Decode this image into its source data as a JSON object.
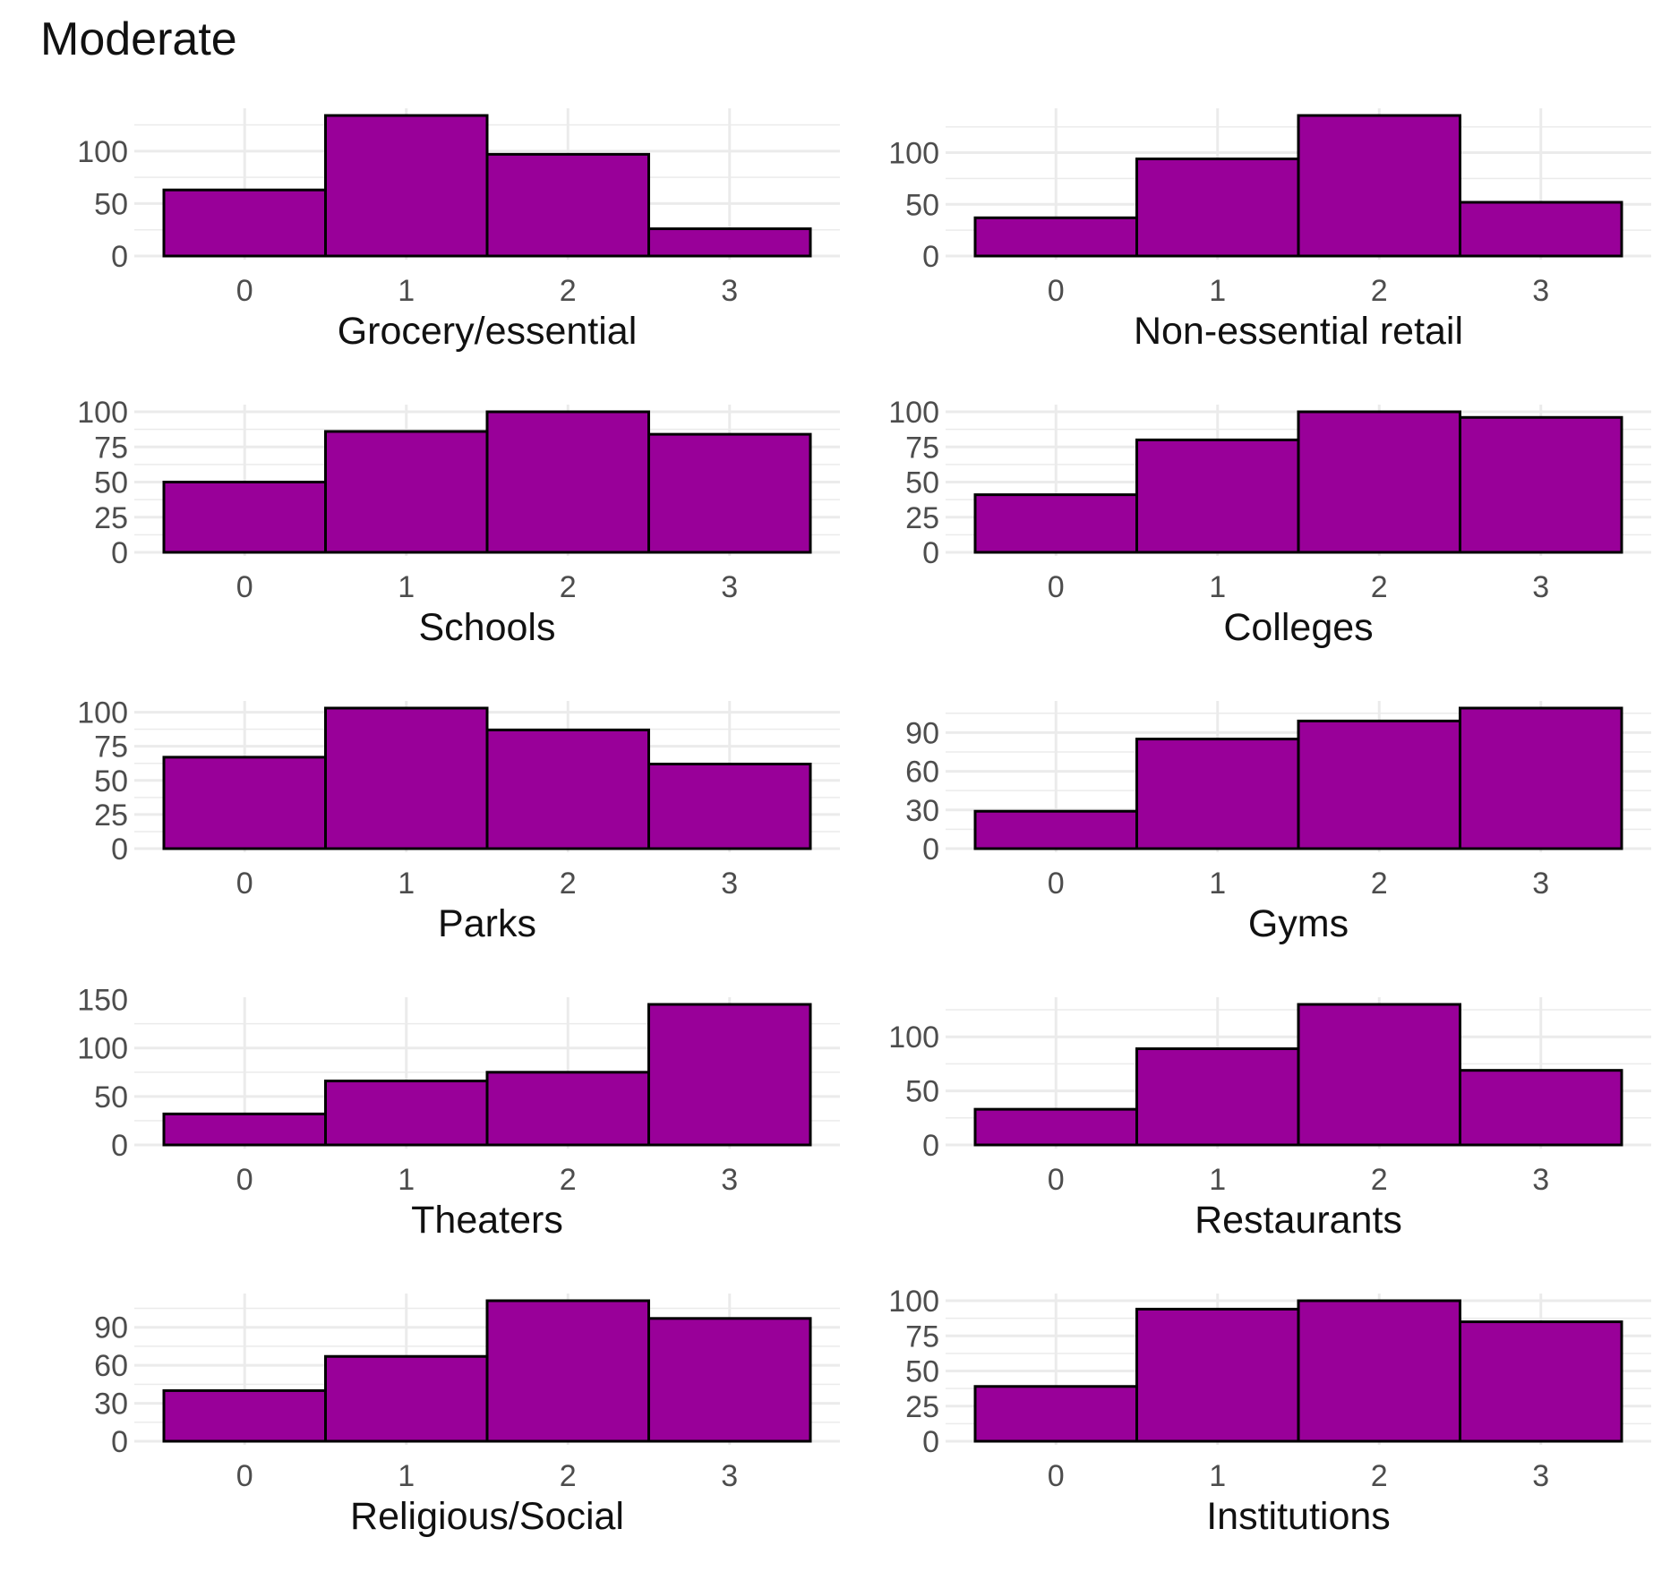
{
  "figure": {
    "title": "Moderate",
    "bar_fill": "#990099",
    "bar_stroke": "#000000",
    "grid_color": "#ebebeb"
  },
  "chart_data": [
    {
      "type": "bar",
      "xlabel": "Grocery/essential",
      "categories": [
        "0",
        "1",
        "2",
        "3"
      ],
      "values": [
        63,
        134,
        97,
        26
      ],
      "ylim": [
        0,
        134
      ],
      "yticks": [
        0,
        50,
        100
      ]
    },
    {
      "type": "bar",
      "xlabel": "Non-essential retail",
      "categories": [
        "0",
        "1",
        "2",
        "3"
      ],
      "values": [
        37,
        94,
        136,
        52
      ],
      "ylim": [
        0,
        136
      ],
      "yticks": [
        0,
        50,
        100
      ]
    },
    {
      "type": "bar",
      "xlabel": "Schools",
      "categories": [
        "0",
        "1",
        "2",
        "3"
      ],
      "values": [
        50,
        86,
        100,
        84
      ],
      "ylim": [
        0,
        100
      ],
      "yticks": [
        0,
        25,
        50,
        75,
        100
      ]
    },
    {
      "type": "bar",
      "xlabel": "Colleges",
      "categories": [
        "0",
        "1",
        "2",
        "3"
      ],
      "values": [
        41,
        80,
        100,
        96
      ],
      "ylim": [
        0,
        100
      ],
      "yticks": [
        0,
        25,
        50,
        75,
        100
      ]
    },
    {
      "type": "bar",
      "xlabel": "Parks",
      "categories": [
        "0",
        "1",
        "2",
        "3"
      ],
      "values": [
        67,
        103,
        87,
        62
      ],
      "ylim": [
        0,
        103
      ],
      "yticks": [
        0,
        25,
        50,
        75,
        100
      ]
    },
    {
      "type": "bar",
      "xlabel": "Gyms",
      "categories": [
        "0",
        "1",
        "2",
        "3"
      ],
      "values": [
        29,
        85,
        99,
        109
      ],
      "ylim": [
        0,
        109
      ],
      "yticks": [
        0,
        30,
        60,
        90
      ]
    },
    {
      "type": "bar",
      "xlabel": "Theaters",
      "categories": [
        "0",
        "1",
        "2",
        "3"
      ],
      "values": [
        32,
        66,
        75,
        145
      ],
      "ylim": [
        0,
        145
      ],
      "yticks": [
        0,
        50,
        100,
        150
      ]
    },
    {
      "type": "bar",
      "xlabel": "Restaurants",
      "categories": [
        "0",
        "1",
        "2",
        "3"
      ],
      "values": [
        33,
        89,
        130,
        69
      ],
      "ylim": [
        0,
        130
      ],
      "yticks": [
        0,
        50,
        100
      ]
    },
    {
      "type": "bar",
      "xlabel": "Religious/Social",
      "categories": [
        "0",
        "1",
        "2",
        "3"
      ],
      "values": [
        40,
        67,
        111,
        97
      ],
      "ylim": [
        0,
        111
      ],
      "yticks": [
        0,
        30,
        60,
        90
      ]
    },
    {
      "type": "bar",
      "xlabel": "Institutions",
      "categories": [
        "0",
        "1",
        "2",
        "3"
      ],
      "values": [
        39,
        94,
        100,
        85
      ],
      "ylim": [
        0,
        100
      ],
      "yticks": [
        0,
        25,
        50,
        75,
        100
      ]
    }
  ]
}
